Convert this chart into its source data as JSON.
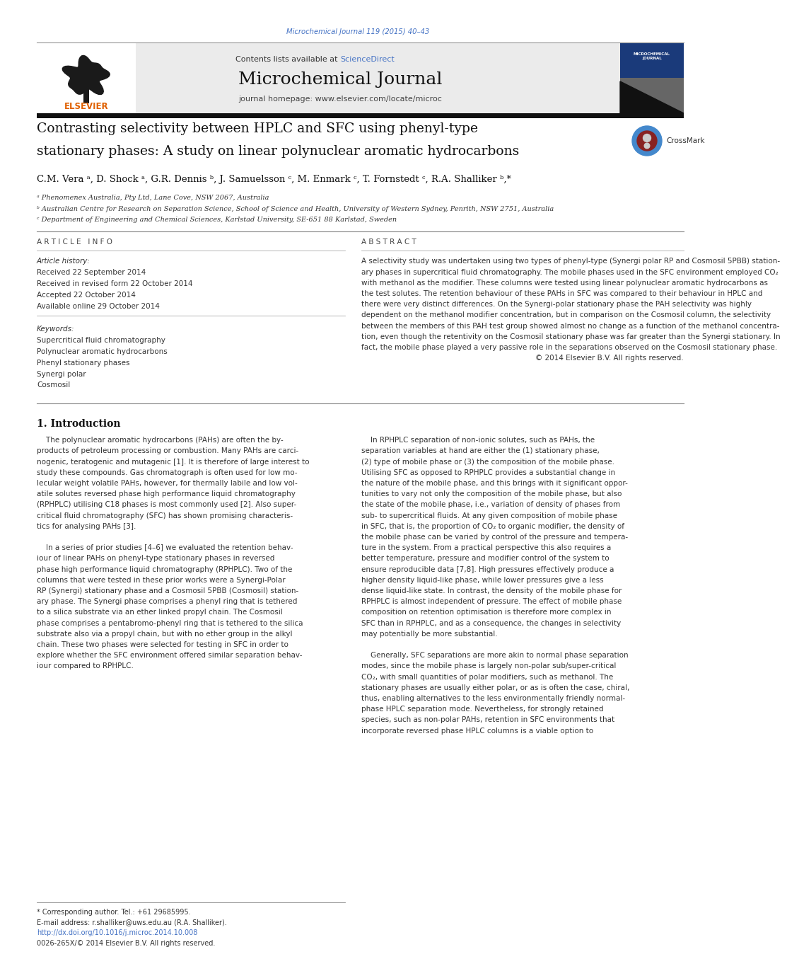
{
  "page_width": 9.92,
  "page_height": 13.23,
  "bg_color": "#ffffff",
  "top_citation": "Microchemical Journal 119 (2015) 40–43",
  "top_citation_color": "#4472c4",
  "journal_name": "Microchemical Journal",
  "contents_text": "Contents lists available at ",
  "science_direct": "ScienceDirect",
  "science_direct_color": "#4472c4",
  "homepage_text": "journal homepage: www.elsevier.com/locate/microc",
  "header_bg": "#ebebeb",
  "article_title_line1": "Contrasting selectivity between HPLC and SFC using phenyl-type",
  "article_title_line2": "stationary phases: A study on linear polynuclear aromatic hydrocarbons",
  "authors": "C.M. Vera ᵃ, D. Shock ᵃ, G.R. Dennis ᵇ, J. Samuelsson ᶜ, M. Enmark ᶜ, T. Fornstedt ᶜ, R.A. Shalliker ᵇ,*",
  "affiliation_a": "ᵃ Phenomenex Australia, Pty Ltd, Lane Cove, NSW 2067, Australia",
  "affiliation_b": "ᵇ Australian Centre for Research on Separation Science, School of Science and Health, University of Western Sydney, Penrith, NSW 2751, Australia",
  "affiliation_c": "ᶜ Department of Engineering and Chemical Sciences, Karlstad University, SE-651 88 Karlstad, Sweden",
  "article_info_header": "A R T I C L E   I N F O",
  "abstract_header": "A B S T R A C T",
  "article_history_label": "Article history:",
  "received": "Received 22 September 2014",
  "received_revised": "Received in revised form 22 October 2014",
  "accepted": "Accepted 22 October 2014",
  "available_online": "Available online 29 October 2014",
  "keywords_label": "Keywords:",
  "keywords": [
    "Supercritical fluid chromatography",
    "Polynuclear aromatic hydrocarbons",
    "Phenyl stationary phases",
    "Synergi polar",
    "Cosmosil"
  ],
  "abstract_lines": [
    "A selectivity study was undertaken using two types of phenyl-type (Synergi polar RP and Cosmosil 5PBB) station-",
    "ary phases in supercritical fluid chromatography. The mobile phases used in the SFC environment employed CO₂",
    "with methanol as the modifier. These columns were tested using linear polynuclear aromatic hydrocarbons as",
    "the test solutes. The retention behaviour of these PAHs in SFC was compared to their behaviour in HPLC and",
    "there were very distinct differences. On the Synergi-polar stationary phase the PAH selectivity was highly",
    "dependent on the methanol modifier concentration, but in comparison on the Cosmosil column, the selectivity",
    "between the members of this PAH test group showed almost no change as a function of the methanol concentra-",
    "tion, even though the retentivity on the Cosmosil stationary phase was far greater than the Synergi stationary. In",
    "fact, the mobile phase played a very passive role in the separations observed on the Cosmosil stationary phase.",
    "© 2014 Elsevier B.V. All rights reserved."
  ],
  "intro_header": "1. Introduction",
  "intro_col1_lines": [
    "    The polynuclear aromatic hydrocarbons (PAHs) are often the by-",
    "products of petroleum processing or combustion. Many PAHs are carci-",
    "nogenic, teratogenic and mutagenic [1]. It is therefore of large interest to",
    "study these compounds. Gas chromatograph is often used for low mo-",
    "lecular weight volatile PAHs, however, for thermally labile and low vol-",
    "atile solutes reversed phase high performance liquid chromatography",
    "(RPHPLC) utilising C18 phases is most commonly used [2]. Also super-",
    "critical fluid chromatography (SFC) has shown promising characteris-",
    "tics for analysing PAHs [3].",
    "",
    "    In a series of prior studies [4–6] we evaluated the retention behav-",
    "iour of linear PAHs on phenyl-type stationary phases in reversed",
    "phase high performance liquid chromatography (RPHPLC). Two of the",
    "columns that were tested in these prior works were a Synergi-Polar",
    "RP (Synergi) stationary phase and a Cosmosil 5PBB (Cosmosil) station-",
    "ary phase. The Synergi phase comprises a phenyl ring that is tethered",
    "to a silica substrate via an ether linked propyl chain. The Cosmosil",
    "phase comprises a pentabromo-phenyl ring that is tethered to the silica",
    "substrate also via a propyl chain, but with no ether group in the alkyl",
    "chain. These two phases were selected for testing in SFC in order to",
    "explore whether the SFC environment offered similar separation behav-",
    "iour compared to RPHPLC."
  ],
  "intro_col2_lines": [
    "    In RPHPLC separation of non-ionic solutes, such as PAHs, the",
    "separation variables at hand are either the (1) stationary phase,",
    "(2) type of mobile phase or (3) the composition of the mobile phase.",
    "Utilising SFC as opposed to RPHPLC provides a substantial change in",
    "the nature of the mobile phase, and this brings with it significant oppor-",
    "tunities to vary not only the composition of the mobile phase, but also",
    "the state of the mobile phase, i.e., variation of density of phases from",
    "sub- to supercritical fluids. At any given composition of mobile phase",
    "in SFC, that is, the proportion of CO₂ to organic modifier, the density of",
    "the mobile phase can be varied by control of the pressure and tempera-",
    "ture in the system. From a practical perspective this also requires a",
    "better temperature, pressure and modifier control of the system to",
    "ensure reproducible data [7,8]. High pressures effectively produce a",
    "higher density liquid-like phase, while lower pressures give a less",
    "dense liquid-like state. In contrast, the density of the mobile phase for",
    "RPHPLC is almost independent of pressure. The effect of mobile phase",
    "composition on retention optimisation is therefore more complex in",
    "SFC than in RPHPLC, and as a consequence, the changes in selectivity",
    "may potentially be more substantial.",
    "",
    "    Generally, SFC separations are more akin to normal phase separation",
    "modes, since the mobile phase is largely non-polar sub/super-critical",
    "CO₂, with small quantities of polar modifiers, such as methanol. The",
    "stationary phases are usually either polar, or as is often the case, chiral,",
    "thus, enabling alternatives to the less environmentally friendly normal-",
    "phase HPLC separation mode. Nevertheless, for strongly retained",
    "species, such as non-polar PAHs, retention in SFC environments that",
    "incorporate reversed phase HPLC columns is a viable option to"
  ],
  "footer_line1": "* Corresponding author. Tel.: +61 29685995.",
  "footer_line2": "E-mail address: r.shalliker@uws.edu.au (R.A. Shalliker).",
  "footer_doi": "http://dx.doi.org/10.1016/j.microc.2014.10.008",
  "footer_issn": "0026-265X/© 2014 Elsevier B.V. All rights reserved.",
  "thick_bar_color": "#111111",
  "elsevier_orange": "#e06000",
  "link_color": "#4472c4",
  "lm": 0.42,
  "rm": 0.35
}
